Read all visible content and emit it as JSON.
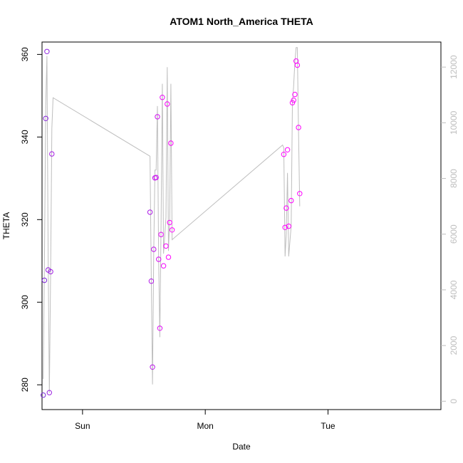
{
  "chart_data": {
    "type": "scatter",
    "title": "ATOM1 North_America THETA",
    "xlabel": "Date",
    "ylabel": "THETA",
    "x_unit": "days",
    "xlim": [
      -0.33,
      2.92
    ],
    "x_ticks": [
      {
        "value": 0,
        "label": "Sun"
      },
      {
        "value": 1,
        "label": "Mon"
      },
      {
        "value": 2,
        "label": "Tue"
      }
    ],
    "ylim": [
      274,
      363
    ],
    "y_ticks": [
      280,
      300,
      320,
      340,
      360
    ],
    "y2lim": [
      -300,
      12900
    ],
    "y2_ticks": [
      0,
      2000,
      4000,
      6000,
      8000,
      10000,
      12000
    ],
    "colors": {
      "line": "#bebebe",
      "points_start": "#7b2bd8",
      "points_end": "#ff00ff",
      "right_axis": "#bebebe",
      "frame": "#000000"
    },
    "points": [
      [
        -0.32,
        277.5
      ],
      [
        -0.31,
        305.3
      ],
      [
        -0.3,
        344.5
      ],
      [
        -0.29,
        360.7
      ],
      [
        -0.28,
        307.8
      ],
      [
        -0.27,
        278.1
      ],
      [
        -0.26,
        307.4
      ],
      [
        -0.25,
        335.9
      ],
      [
        0.55,
        321.8
      ],
      [
        0.56,
        305.1
      ],
      [
        0.57,
        284.3
      ],
      [
        0.58,
        312.8
      ],
      [
        0.59,
        330.1
      ],
      [
        0.6,
        330.2
      ],
      [
        0.61,
        344.9
      ],
      [
        0.62,
        310.4
      ],
      [
        0.63,
        293.7
      ],
      [
        0.64,
        316.4
      ],
      [
        0.65,
        349.6
      ],
      [
        0.66,
        308.8
      ],
      [
        0.68,
        313.6
      ],
      [
        0.69,
        348.0
      ],
      [
        0.7,
        310.9
      ],
      [
        0.71,
        319.3
      ],
      [
        0.72,
        338.5
      ],
      [
        0.73,
        317.5
      ],
      [
        1.64,
        335.8
      ],
      [
        1.65,
        318.1
      ],
      [
        1.66,
        322.8
      ],
      [
        1.67,
        336.9
      ],
      [
        1.68,
        318.4
      ],
      [
        1.7,
        324.6
      ],
      [
        1.71,
        348.3
      ],
      [
        1.72,
        348.9
      ],
      [
        1.73,
        350.3
      ],
      [
        1.74,
        358.4
      ],
      [
        1.75,
        357.4
      ],
      [
        1.76,
        342.3
      ],
      [
        1.77,
        326.3
      ]
    ],
    "line_series": [
      [
        -0.32,
        800
      ],
      [
        -0.31,
        5000
      ],
      [
        -0.3,
        10600
      ],
      [
        -0.29,
        12400
      ],
      [
        -0.28,
        5200
      ],
      [
        -0.27,
        300
      ],
      [
        -0.26,
        4700
      ],
      [
        -0.25,
        9800
      ],
      [
        -0.24,
        10900
      ],
      [
        0.55,
        8800
      ],
      [
        0.56,
        4400
      ],
      [
        0.57,
        600
      ],
      [
        0.58,
        5300
      ],
      [
        0.59,
        8300
      ],
      [
        0.6,
        8300
      ],
      [
        0.61,
        10600
      ],
      [
        0.62,
        5100
      ],
      [
        0.63,
        2300
      ],
      [
        0.64,
        6300
      ],
      [
        0.65,
        11400
      ],
      [
        0.66,
        5300
      ],
      [
        0.68,
        6600
      ],
      [
        0.69,
        12000
      ],
      [
        0.7,
        5400
      ],
      [
        0.71,
        6500
      ],
      [
        0.72,
        11400
      ],
      [
        0.73,
        5800
      ],
      [
        1.63,
        9200
      ],
      [
        1.64,
        9100
      ],
      [
        1.65,
        5200
      ],
      [
        1.66,
        6000
      ],
      [
        1.67,
        8200
      ],
      [
        1.68,
        5200
      ],
      [
        1.7,
        6300
      ],
      [
        1.71,
        10700
      ],
      [
        1.72,
        11300
      ],
      [
        1.73,
        12200
      ],
      [
        1.74,
        12700
      ],
      [
        1.75,
        12700
      ],
      [
        1.76,
        9700
      ],
      [
        1.77,
        7000
      ]
    ],
    "legend": "none",
    "grid": false
  }
}
